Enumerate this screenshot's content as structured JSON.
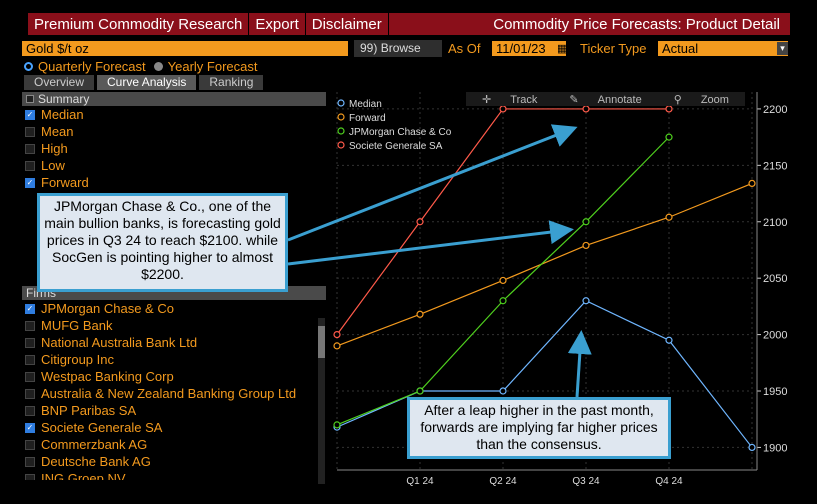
{
  "topbar": {
    "menu": [
      "Premium Commodity Research",
      "Export",
      "Disclaimer"
    ],
    "title": "Commodity Price Forecasts: Product Detail"
  },
  "security": {
    "value": "Gold $/t oz",
    "browse_label": "Browse",
    "browse_key": "99)",
    "asof_label": "As Of",
    "asof_value": "11/01/23",
    "ticker_label": "Ticker Type",
    "ticker_value": "Actual"
  },
  "radios": {
    "quarterly": "Quarterly Forecast",
    "yearly": "Yearly Forecast"
  },
  "tabs": [
    "Overview",
    "Curve Analysis",
    "Ranking"
  ],
  "summary": {
    "heading": "Summary",
    "items": [
      {
        "label": "Median",
        "checked": true
      },
      {
        "label": "Mean",
        "checked": false
      },
      {
        "label": "High",
        "checked": false
      },
      {
        "label": "Low",
        "checked": false
      },
      {
        "label": "Forward",
        "checked": true
      }
    ]
  },
  "firms": {
    "heading": "Firms",
    "items": [
      {
        "label": "JPMorgan Chase & Co",
        "checked": true
      },
      {
        "label": "MUFG Bank",
        "checked": false
      },
      {
        "label": "National Australia Bank Ltd",
        "checked": false
      },
      {
        "label": "Citigroup Inc",
        "checked": false
      },
      {
        "label": "Westpac Banking Corp",
        "checked": false
      },
      {
        "label": "Australia & New Zealand Banking Group Ltd",
        "checked": false
      },
      {
        "label": "BNP Paribas SA",
        "checked": false
      },
      {
        "label": "Societe Generale SA",
        "checked": true
      },
      {
        "label": "Commerzbank AG",
        "checked": false
      },
      {
        "label": "Deutsche Bank AG",
        "checked": false
      },
      {
        "label": "ING Groep NV",
        "checked": false
      }
    ]
  },
  "toolbar": {
    "track": "Track",
    "annotate": "Annotate",
    "zoom": "Zoom"
  },
  "callouts": {
    "c1": "JPMorgan Chase & Co., one of the main bullion banks, is forecasting gold prices in Q3 24 to reach $2100. while SocGen is pointing higher to almost $2200.",
    "c2": "After a leap higher in the past month, forwards are implying far higher prices than the consensus."
  },
  "chart_data": {
    "type": "line",
    "x": [
      0,
      1,
      2,
      3,
      4,
      5
    ],
    "categories": [
      "",
      "Q1 24",
      "Q2 24",
      "Q3 24",
      "Q4 24",
      ""
    ],
    "ylim": [
      1880,
      2215
    ],
    "yticks": [
      1900,
      1950,
      2000,
      2050,
      2100,
      2150,
      2200
    ],
    "legend_position": "top-left",
    "series": [
      {
        "name": "Median",
        "color": "#6fb6ff",
        "values": [
          1918,
          1950,
          1950,
          2030,
          1995,
          1900
        ]
      },
      {
        "name": "Forward",
        "color": "#f39a1e",
        "values": [
          1990,
          2018,
          2048,
          2079,
          2104,
          2134
        ]
      },
      {
        "name": "JPMorgan Chase & Co",
        "color": "#4fd01e",
        "values": [
          1920,
          1950,
          2030,
          2100,
          2175,
          null
        ]
      },
      {
        "name": "Societe Generale SA",
        "color": "#ff5a4a",
        "values": [
          2000,
          2100,
          2200,
          2200,
          2200,
          null
        ]
      }
    ]
  }
}
